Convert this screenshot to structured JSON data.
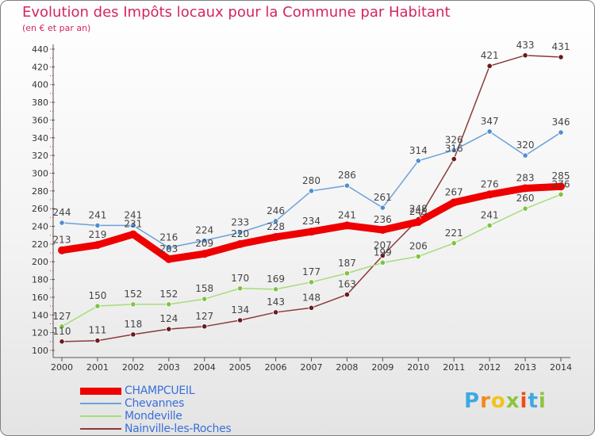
{
  "title": "Evolution des Impôts locaux pour la Commune par Habitant",
  "subtitle": "(en € et par an)",
  "logo": {
    "letters": [
      "P",
      "r",
      "o",
      "x",
      "i",
      "t",
      "i"
    ],
    "colors": [
      "#3fa9e0",
      "#f08a1c",
      "#f0c419",
      "#8cc63f",
      "#e94e1b",
      "#3fa9e0",
      "#8cc63f"
    ]
  },
  "chart_data": {
    "type": "line",
    "title": "Evolution des Impôts locaux pour la Commune par Habitant",
    "subtitle": "(en € et par an)",
    "x": [
      "2000",
      "2001",
      "2002",
      "2003",
      "2004",
      "2005",
      "2006",
      "2007",
      "2008",
      "2009",
      "2010",
      "2011",
      "2012",
      "2013",
      "2014"
    ],
    "y_ticks": [
      "100",
      "120",
      "140",
      "160",
      "180",
      "200",
      "220",
      "240",
      "260",
      "280",
      "300",
      "320",
      "340",
      "360",
      "380",
      "400",
      "420",
      "440"
    ],
    "ylim": [
      100,
      440
    ],
    "grid": false,
    "legend_position": "bottom-left",
    "series": [
      {
        "name": "CHAMPCUEIL",
        "color": "#ee0000",
        "marker_color": "#ee0000",
        "values": [
          213,
          219,
          231,
          203,
          209,
          220,
          228,
          234,
          241,
          236,
          245,
          267,
          276,
          283,
          285
        ],
        "labels": [
          "213",
          "219",
          "231",
          "203",
          "209",
          "220",
          "228",
          "234",
          "241",
          "236",
          "245",
          "267",
          "276",
          "283",
          "285"
        ]
      },
      {
        "name": "Chevannes",
        "color": "#6aa2d8",
        "marker_color": "#4f8fd0",
        "values": [
          244,
          241,
          241,
          216,
          224,
          233,
          246,
          280,
          286,
          261,
          314,
          326,
          347,
          320,
          346
        ],
        "labels": [
          "244",
          "241",
          "241",
          "216",
          "224",
          "233",
          "246",
          "280",
          "286",
          "261",
          "314",
          "326",
          "347",
          "320",
          "346"
        ]
      },
      {
        "name": "Mondeville",
        "color": "#a8dc7a",
        "marker_color": "#7cc444",
        "values": [
          127,
          150,
          152,
          152,
          158,
          170,
          169,
          177,
          187,
          199,
          206,
          221,
          241,
          260,
          276
        ],
        "labels": [
          "127",
          "150",
          "152",
          "152",
          "158",
          "170",
          "169",
          "177",
          "187",
          "199",
          "206",
          "221",
          "241",
          "260",
          "276"
        ]
      },
      {
        "name": "Nainville-les-Roches",
        "color": "#8b3a3a",
        "marker_color": "#6b1a1a",
        "values": [
          110,
          111,
          118,
          124,
          127,
          134,
          143,
          148,
          163,
          207,
          248,
          316,
          421,
          433,
          431
        ],
        "labels": [
          "110",
          "111",
          "118",
          "124",
          "127",
          "134",
          "143",
          "148",
          "163",
          "207",
          "248",
          "316",
          "421",
          "433",
          "431"
        ]
      }
    ]
  }
}
